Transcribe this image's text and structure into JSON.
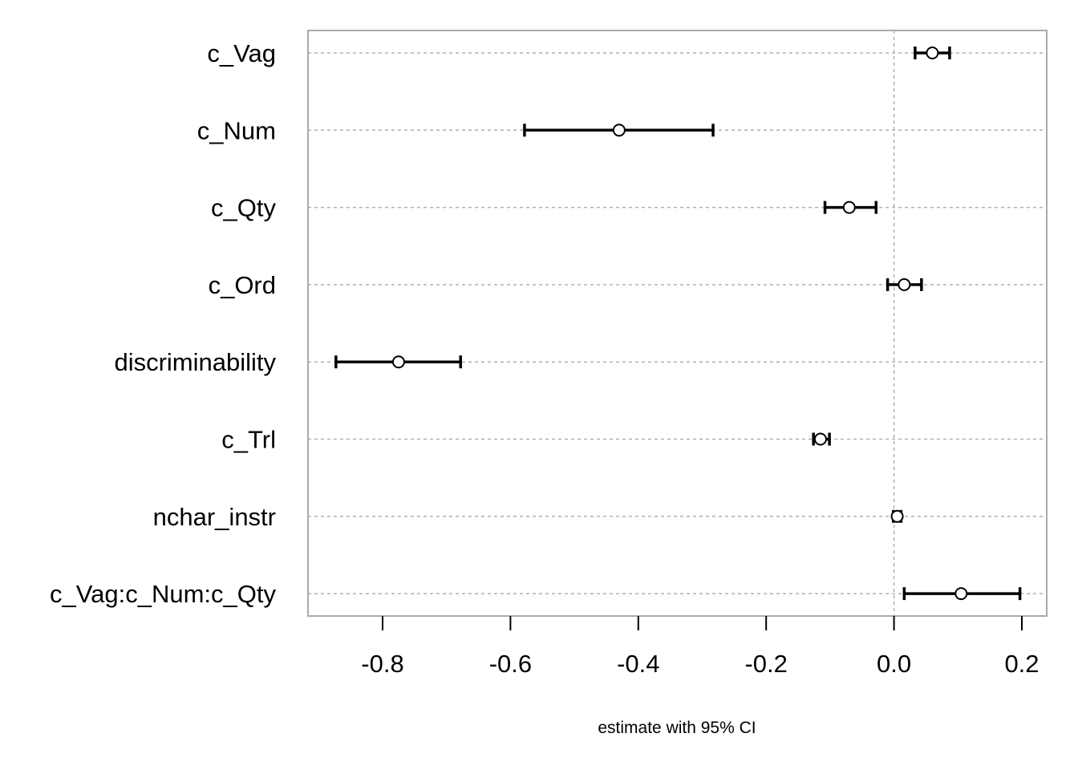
{
  "chart_data": {
    "type": "forest",
    "title": "",
    "xlabel": "estimate with 95% CI",
    "ylabel": "",
    "xlim": [
      -0.92,
      0.24
    ],
    "xticks": [
      -0.8,
      -0.6,
      -0.4,
      -0.2,
      0.0,
      0.2
    ],
    "xtick_labels": [
      "-0.8",
      "-0.6",
      "-0.4",
      "-0.2",
      "0.0",
      "0.2"
    ],
    "reference_line": 0.0,
    "grid": "horizontal dotted",
    "categories": [
      "c_Vag",
      "c_Num",
      "c_Qty",
      "c_Ord",
      "discriminability",
      "c_Trl",
      "nchar_instr",
      "c_Vag:c_Num:c_Qty"
    ],
    "estimates": [
      0.06,
      -0.43,
      -0.07,
      0.016,
      -0.775,
      -0.115,
      0.005,
      0.105
    ],
    "ci_lower": [
      0.033,
      -0.578,
      -0.108,
      -0.01,
      -0.873,
      -0.126,
      -0.001,
      0.016
    ],
    "ci_upper": [
      0.087,
      -0.283,
      -0.028,
      0.043,
      -0.678,
      -0.101,
      0.011,
      0.197
    ]
  },
  "colors": {
    "frame": "#aaaaaa",
    "grid": "#b0b0b0",
    "ink": "#000000",
    "marker_fill": "#ffffff"
  }
}
